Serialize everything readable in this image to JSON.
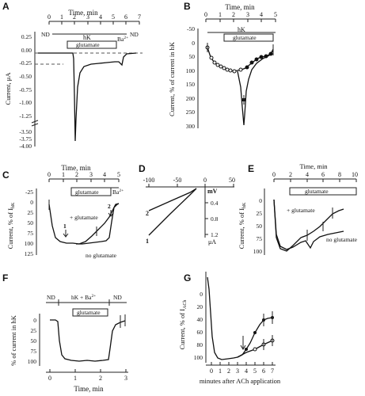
{
  "panels": {
    "A": {
      "letter": "A",
      "xlabel": "Time, min",
      "xticks": [
        "0",
        "1",
        "2",
        "3",
        "4",
        "5",
        "6",
        "7"
      ],
      "ylabel": "Current, μA",
      "yticks": [
        "0.25",
        "0.00",
        "-0.25",
        "-0.50",
        "-0.75",
        "-1.00",
        "-1.25",
        "-3.50",
        "-3.75",
        "-4.00"
      ],
      "bars": {
        "nd_left": "ND",
        "hk": "hK",
        "nd_right": "ND",
        "glutamate": "glutamate",
        "ba": "Ba"
      },
      "ba_sup": "2+"
    },
    "B": {
      "letter": "B",
      "xlabel": "Time, min",
      "xticks": [
        "0",
        "1",
        "2",
        "3",
        "4",
        "5"
      ],
      "ylabel": "Current, % of current in hK",
      "yticks": [
        "-50",
        "0",
        "50",
        "100",
        "150",
        "200",
        "250",
        "300"
      ],
      "bars": {
        "hk": "hK",
        "glutamate": "glutamate"
      }
    },
    "C": {
      "letter": "C",
      "xlabel": "Time, min",
      "xticks": [
        "0",
        "1",
        "2",
        "3",
        "4",
        "5"
      ],
      "ylabel": "Current, % of I",
      "ylabel_sub": "hK",
      "yticks": [
        "-25",
        "0",
        "25",
        "50",
        "75",
        "100",
        "125"
      ],
      "bars": {
        "glutamate": "glutamate",
        "ba": "Ba"
      },
      "ba_sup": "2+",
      "annotations": {
        "plus_glu": "+ glutamate",
        "no_glu": "no glutamate",
        "m1": "1",
        "m2": "2"
      }
    },
    "D": {
      "letter": "D",
      "xticks": [
        "-100",
        "-50",
        "0",
        "50"
      ],
      "xunit": "mV",
      "yticks": [
        "0.4",
        "0.8",
        "1.2"
      ],
      "yunit": "μA",
      "lines": {
        "l1": "1",
        "l2": "2"
      }
    },
    "E": {
      "letter": "E",
      "xlabel": "Time, min",
      "xticks": [
        "0",
        "2",
        "4",
        "6",
        "8",
        "10"
      ],
      "ylabel": "Current, % of I",
      "ylabel_sub": "hK",
      "yticks": [
        "0",
        "25",
        "50",
        "75",
        "100"
      ],
      "bars": {
        "glutamate": "glutamate"
      },
      "annotations": {
        "plus_glu": "+ glutamate",
        "no_glu": "no glutamate"
      }
    },
    "F": {
      "letter": "F",
      "xlabel": "Time, min",
      "xticks": [
        "0",
        "1",
        "2",
        "3"
      ],
      "ylabel": "% of current in hK",
      "yticks": [
        "0",
        "25",
        "50",
        "75",
        "100"
      ],
      "bars": {
        "nd_left": "ND",
        "hk_ba": "hK + Ba",
        "nd_right": "ND",
        "glutamate": "glutamate"
      },
      "ba_sup": "2+"
    },
    "G": {
      "letter": "G",
      "xlabel": "minutes after ACh application",
      "xticks": [
        "0",
        "1",
        "2",
        "3",
        "4",
        "5",
        "6",
        "7"
      ],
      "ylabel": "Current, % of I",
      "ylabel_sub": "ACh",
      "yticks": [
        "0",
        "20",
        "40",
        "60",
        "80",
        "100"
      ]
    }
  },
  "chart_data": [
    {
      "panel": "A",
      "type": "line",
      "title": "",
      "xlabel": "Time, min",
      "ylabel": "Current, μA",
      "xlim": [
        0,
        7
      ],
      "ylim": [
        -4.0,
        0.25
      ],
      "series": [
        {
          "x": [
            0,
            0.5,
            1.0,
            1.5,
            2.0,
            2.05,
            2.15,
            2.3,
            2.5,
            3.0,
            3.5,
            4.0,
            4.5,
            5.0,
            5.5,
            5.8,
            6.0,
            6.5
          ],
          "y": [
            0.0,
            0.0,
            0.0,
            0.0,
            0.0,
            -0.35,
            -3.7,
            -1.3,
            -0.55,
            -0.28,
            -0.22,
            -0.2,
            -0.18,
            -0.16,
            -0.15,
            -0.2,
            -0.05,
            0.0
          ]
        }
      ]
    },
    {
      "panel": "B",
      "type": "line",
      "title": "",
      "xlabel": "Time, min",
      "ylabel": "Current, % of current in hK",
      "xlim": [
        0,
        5
      ],
      "ylim": [
        -50,
        300
      ],
      "series": [
        {
          "x": [
            0.1,
            0.3,
            0.5,
            0.7,
            0.9,
            1.1,
            1.3,
            1.5,
            1.7,
            1.9,
            2.1,
            2.3,
            2.5,
            2.7,
            2.9,
            3.1,
            3.3,
            3.5,
            3.7,
            3.9,
            4.1
          ],
          "y": [
            10,
            45,
            65,
            78,
            85,
            90,
            95,
            100,
            103,
            104,
            103,
            102,
            100,
            95,
            80,
            65,
            55,
            45,
            40,
            35,
            20
          ]
        },
        {
          "x": [
            2.3,
            2.4,
            2.5,
            2.65,
            2.8,
            3.0,
            3.3,
            3.6,
            3.9,
            4.1
          ],
          "y": [
            100,
            200,
            290,
            210,
            130,
            85,
            55,
            40,
            35,
            15
          ]
        }
      ]
    },
    {
      "panel": "C",
      "type": "line",
      "title": "",
      "xlabel": "Time, min",
      "ylabel": "Current, % of IhK",
      "xlim": [
        0,
        5
      ],
      "ylim": [
        -25,
        125
      ],
      "series": [
        {
          "name": "+ glutamate",
          "x": [
            0,
            0.3,
            0.5,
            0.8,
            1.0,
            1.5,
            2.0,
            2.5,
            3.0,
            3.5,
            4.0,
            4.5,
            4.7
          ],
          "y": [
            0,
            75,
            95,
            100,
            100,
            102,
            105,
            98,
            82,
            68,
            55,
            10,
            0
          ]
        },
        {
          "name": "no glutamate",
          "x": [
            2.0,
            2.5,
            3.0,
            3.5,
            4.0,
            4.3,
            4.5,
            4.7
          ],
          "y": [
            105,
            104,
            102,
            100,
            98,
            95,
            40,
            5
          ]
        }
      ]
    },
    {
      "panel": "D",
      "type": "line",
      "title": "",
      "xlabel": "mV",
      "ylabel": "μA",
      "xlim": [
        -120,
        50
      ],
      "ylim": [
        0,
        1.4
      ],
      "series": [
        {
          "name": "1",
          "x": [
            -120,
            -80,
            -40,
            -30
          ],
          "y": [
            1.35,
            0.9,
            0.2,
            0
          ]
        },
        {
          "name": "2",
          "x": [
            -120,
            -80,
            -40,
            -30
          ],
          "y": [
            0.72,
            0.45,
            0.1,
            0
          ]
        }
      ]
    },
    {
      "panel": "E",
      "type": "line",
      "title": "",
      "xlabel": "Time, min",
      "ylabel": "Current, % of IhK",
      "xlim": [
        0,
        10
      ],
      "ylim": [
        0,
        110
      ],
      "series": [
        {
          "name": "+ glutamate",
          "x": [
            0,
            0.3,
            0.7,
            1.2,
            2,
            3,
            3.5,
            4,
            5,
            6,
            7,
            7.5
          ],
          "y": [
            0,
            80,
            100,
            103,
            95,
            80,
            80,
            75,
            65,
            55,
            42,
            38
          ]
        },
        {
          "name": "no glutamate",
          "x": [
            0,
            0.3,
            0.7,
            1.2,
            2,
            3,
            4,
            4.5,
            5,
            6,
            7,
            7.5
          ],
          "y": [
            0,
            75,
            98,
            100,
            95,
            88,
            85,
            100,
            78,
            72,
            70,
            68
          ]
        }
      ]
    },
    {
      "panel": "F",
      "type": "line",
      "title": "",
      "xlabel": "Time, min",
      "ylabel": "% of current in hK",
      "xlim": [
        0,
        3.2
      ],
      "ylim": [
        0,
        110
      ],
      "series": [
        {
          "x": [
            0,
            0.2,
            0.3,
            0.4,
            0.7,
            1.0,
            1.3,
            1.6,
            1.9,
            2.2,
            2.35,
            2.5,
            2.6,
            2.8,
            3.0
          ],
          "y": [
            0,
            0,
            5,
            85,
            100,
            103,
            103,
            101,
            100,
            100,
            102,
            70,
            20,
            15,
            10
          ]
        }
      ]
    },
    {
      "panel": "G",
      "type": "line",
      "title": "",
      "xlabel": "minutes after ACh application",
      "ylabel": "Current, % of IACh",
      "xlim": [
        -0.5,
        7.5
      ],
      "ylim": [
        0,
        100
      ],
      "series": [
        {
          "x": [
            -0.5,
            0,
            0.3,
            0.5,
            1,
            2,
            2.5,
            3
          ],
          "y": [
            0,
            0,
            70,
            95,
            100,
            98,
            97,
            95
          ]
        },
        {
          "x": [
            3,
            3.5,
            4,
            4.5,
            5,
            5.5,
            6,
            6.5,
            7
          ],
          "y": [
            95,
            90,
            80,
            65,
            50,
            38,
            30,
            27,
            25
          ]
        },
        {
          "x": [
            3,
            4,
            5,
            6,
            7
          ],
          "y": [
            95,
            90,
            86,
            80,
            75
          ]
        }
      ]
    }
  ]
}
